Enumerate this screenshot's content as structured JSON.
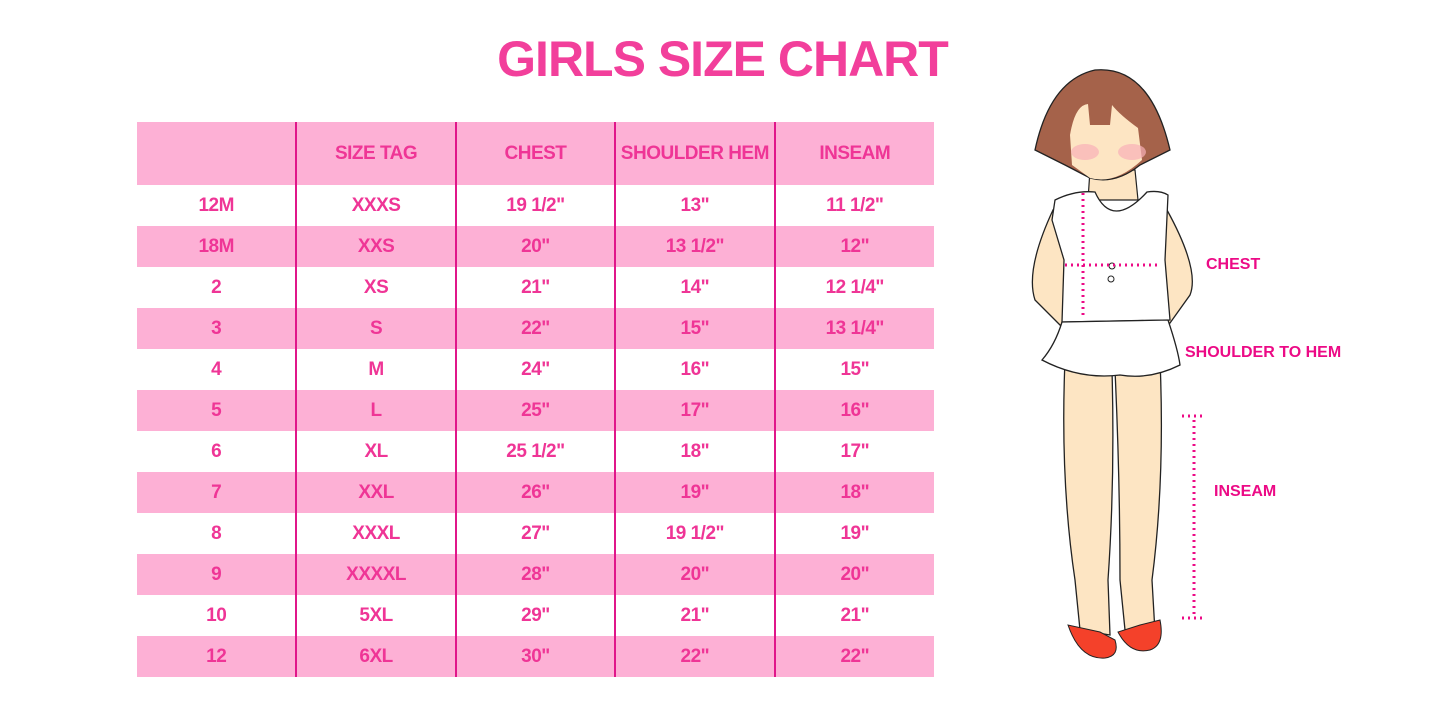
{
  "title": "GIRLS SIZE CHART",
  "table": {
    "headers": [
      "",
      "SIZE TAG",
      "CHEST",
      "SHOULDER HEM",
      "INSEAM"
    ],
    "rows": [
      [
        "12M",
        "XXXS",
        "19 1/2\"",
        "13\"",
        "11 1/2\""
      ],
      [
        "18M",
        "XXS",
        "20\"",
        "13 1/2\"",
        "12\""
      ],
      [
        "2",
        "XS",
        "21\"",
        "14\"",
        "12 1/4\""
      ],
      [
        "3",
        "S",
        "22\"",
        "15\"",
        "13 1/4\""
      ],
      [
        "4",
        "M",
        "24\"",
        "16\"",
        "15\""
      ],
      [
        "5",
        "L",
        "25\"",
        "17\"",
        "16\""
      ],
      [
        "6",
        "XL",
        "25 1/2\"",
        "18\"",
        "17\""
      ],
      [
        "7",
        "XXL",
        "26\"",
        "19\"",
        "18\""
      ],
      [
        "8",
        "XXXL",
        "27\"",
        "19 1/2\"",
        "19\""
      ],
      [
        "9",
        "XXXXL",
        "28\"",
        "20\"",
        "20\""
      ],
      [
        "10",
        "5XL",
        "29\"",
        "21\"",
        "21\""
      ],
      [
        "12",
        "6XL",
        "30\"",
        "22\"",
        "22\""
      ]
    ]
  },
  "figure": {
    "labels": {
      "chest": "CHEST",
      "shoulder": "SHOULDER TO HEM",
      "inseam": "INSEAM"
    }
  },
  "colors": {
    "accent": "#ef3596",
    "row_pink": "#fdb0d5",
    "divider": "#e0168a"
  }
}
